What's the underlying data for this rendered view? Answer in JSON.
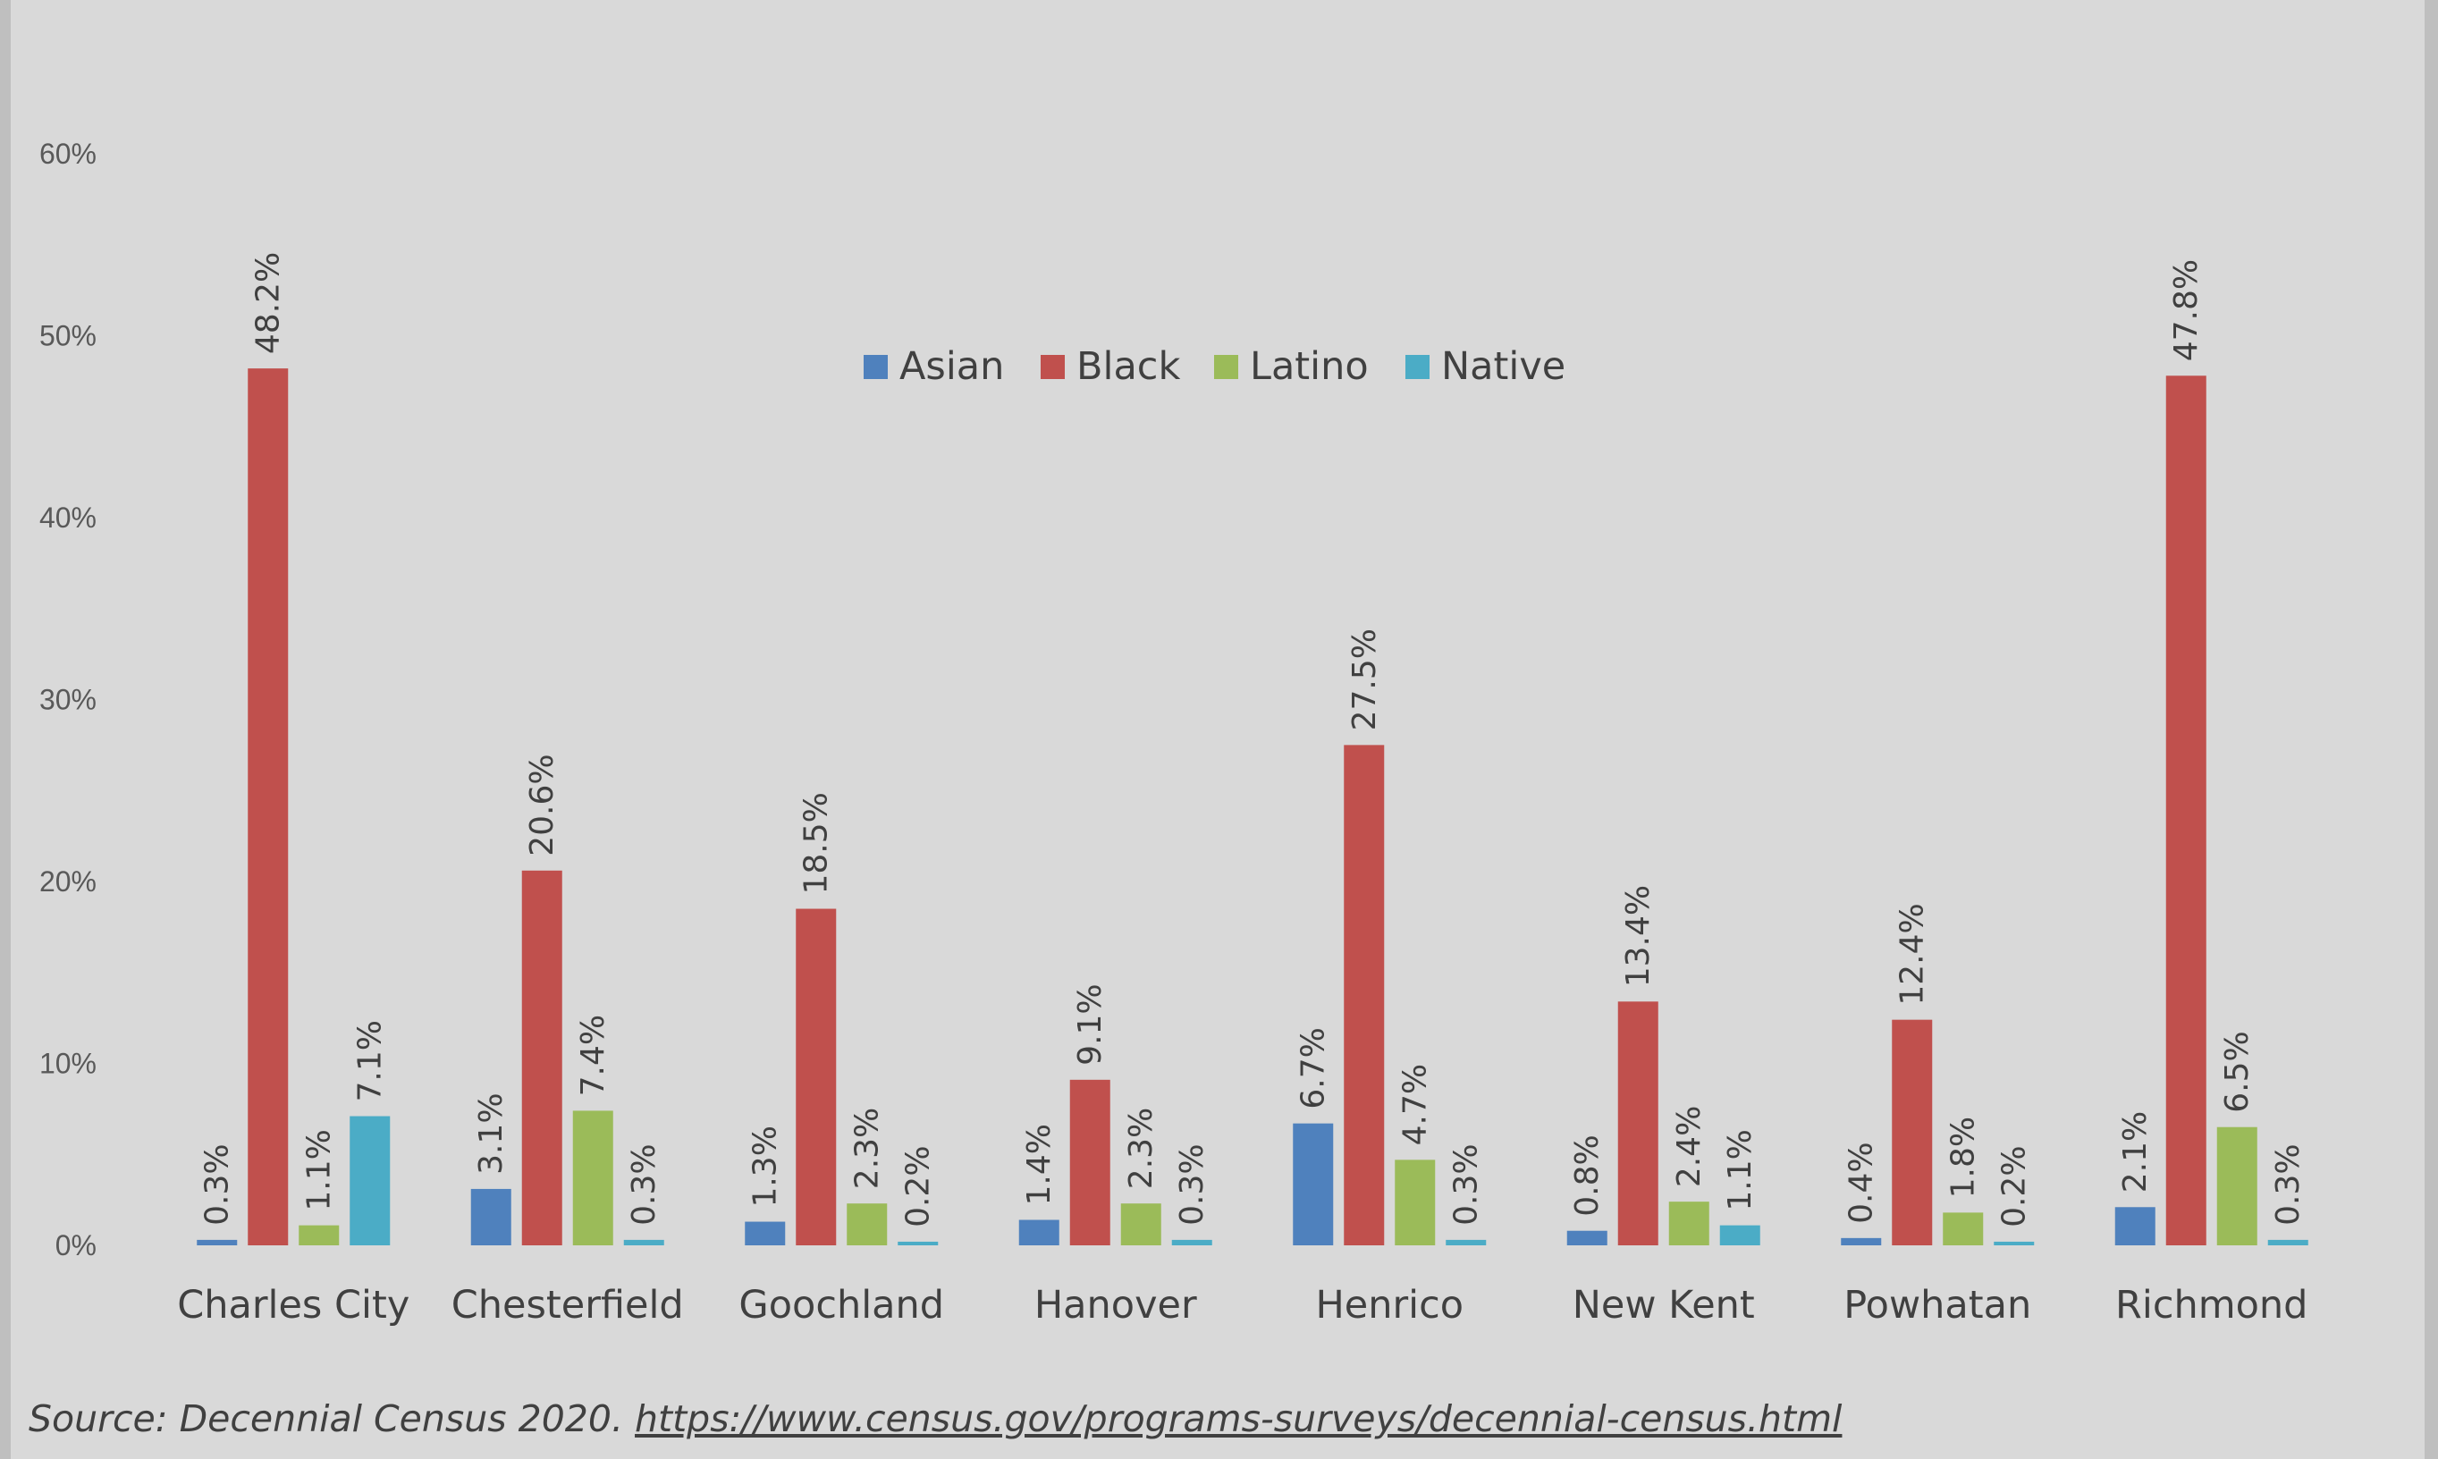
{
  "chart_data": {
    "type": "bar",
    "categories": [
      "Charles City",
      "Chesterfield",
      "Goochland",
      "Hanover",
      "Henrico",
      "New Kent",
      "Powhatan",
      "Richmond"
    ],
    "series": [
      {
        "name": "Asian",
        "color": "#4f81bd",
        "values": [
          0.3,
          3.1,
          1.3,
          1.4,
          6.7,
          0.8,
          0.4,
          2.1
        ],
        "labels": [
          "0.3%",
          "3.1%",
          "1.3%",
          "1.4%",
          "6.7%",
          "0.8%",
          "0.4%",
          "2.1%"
        ]
      },
      {
        "name": "Black",
        "color": "#c0504d",
        "values": [
          48.2,
          20.6,
          18.5,
          9.1,
          27.5,
          13.4,
          12.4,
          47.8
        ],
        "labels": [
          "48.2%",
          "20.6%",
          "18.5%",
          "9.1%",
          "27.5%",
          "13.4%",
          "12.4%",
          "47.8%"
        ]
      },
      {
        "name": "Latino",
        "color": "#9bbb59",
        "values": [
          1.1,
          7.4,
          2.3,
          2.3,
          4.7,
          2.4,
          1.8,
          6.5
        ],
        "labels": [
          "1.1%",
          "7.4%",
          "2.3%",
          "2.3%",
          "4.7%",
          "2.4%",
          "1.8%",
          "6.5%"
        ]
      },
      {
        "name": "Native",
        "color": "#4bacc6",
        "values": [
          7.1,
          0.3,
          0.2,
          0.3,
          0.3,
          1.1,
          0.2,
          0.3
        ],
        "labels": [
          "7.1%",
          "0.3%",
          "0.2%",
          "0.3%",
          "0.3%",
          "1.1%",
          "0.2%",
          "0.3%"
        ]
      }
    ],
    "ylim": [
      0,
      60
    ],
    "yticks": [
      0,
      10,
      20,
      30,
      40,
      50,
      60
    ],
    "ytick_labels": [
      "0%",
      "10%",
      "20%",
      "30%",
      "40%",
      "50%",
      "60%"
    ],
    "title": "",
    "xlabel": "",
    "ylabel": "",
    "grid": false,
    "legend_position": "top-center"
  },
  "source": {
    "prefix": "Source: Decennial Census 2020. ",
    "link": "https://www.census.gov/programs-surveys/decennial-census.html"
  }
}
